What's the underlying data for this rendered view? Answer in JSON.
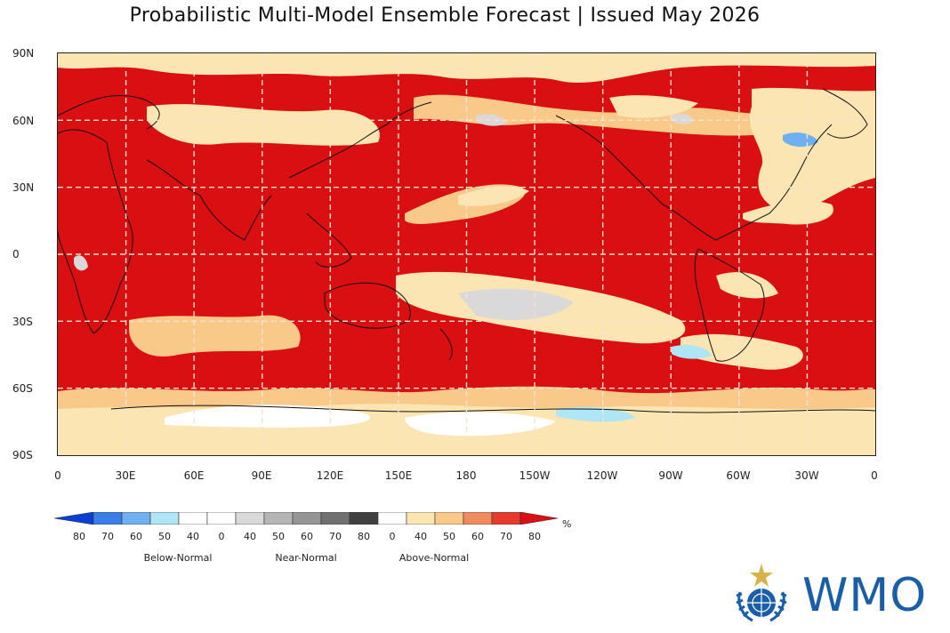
{
  "title": "Probabilistic Multi-Model Ensemble Forecast | Issued May 2026",
  "map": {
    "lat_labels": [
      "90N",
      "60N",
      "30N",
      "0",
      "30S",
      "60S",
      "90S"
    ],
    "lon_labels": [
      "0",
      "30E",
      "60E",
      "90E",
      "120E",
      "150E",
      "180",
      "150W",
      "120W",
      "90W",
      "60W",
      "30W",
      "0"
    ],
    "grid": "dashed",
    "base_color": "#d90f12"
  },
  "legend": {
    "unit": "%",
    "ticks": [
      "80",
      "70",
      "60",
      "50",
      "40",
      "0",
      "40",
      "50",
      "60",
      "70",
      "80",
      "0",
      "40",
      "50",
      "60",
      "70",
      "80"
    ],
    "categories": [
      "Below-Normal",
      "Near-Normal",
      "Above-Normal"
    ],
    "colors": [
      "#0a3fd6",
      "#3a7ee8",
      "#6fb0f0",
      "#aee6f5",
      "#ffffff",
      "#ffffff",
      "#d9d9d9",
      "#b5b5b5",
      "#959595",
      "#707070",
      "#404040",
      "#ffffff",
      "#fbe6b3",
      "#f9c98a",
      "#f18b5e",
      "#e53b2c",
      "#d90f12"
    ]
  },
  "logo": {
    "name": "wmo-emblem-icon",
    "text": "WMO",
    "color": "#1a5ea8"
  }
}
